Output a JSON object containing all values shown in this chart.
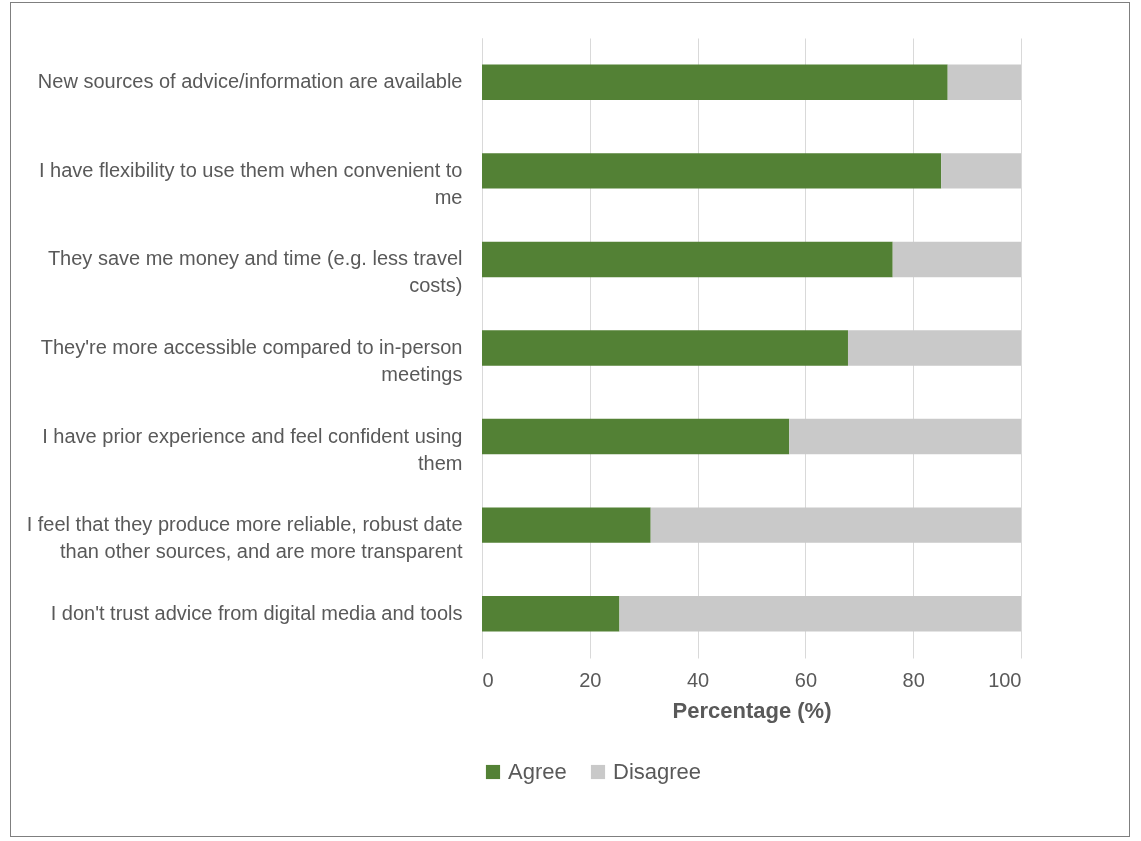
{
  "chart_data": {
    "type": "bar",
    "orientation": "horizontal",
    "stacked": true,
    "categories": [
      "New sources of advice/information are available",
      "I have flexibility to use them when convenient to me",
      "They save me money and time (e.g. less travel costs)",
      "They're more accessible compared to in-person meetings",
      "I have prior experience and feel confident using them",
      "I feel that they produce more reliable, robust date than other sources, and are more transparent",
      "I don't trust advice from digital media and tools"
    ],
    "series": [
      {
        "name": "Agree",
        "color": "#538135",
        "values": [
          86.4,
          85.2,
          76.2,
          67.9,
          57.0,
          31.3,
          25.5
        ]
      },
      {
        "name": "Disagree",
        "color": "#c9c9c9",
        "values": [
          13.6,
          14.8,
          23.8,
          32.1,
          43.0,
          68.7,
          74.5
        ]
      }
    ],
    "xlabel": "Percentage (%)",
    "xlim": [
      0,
      100
    ],
    "xticks": [
      0,
      20,
      40,
      60,
      80,
      100
    ],
    "grid": "x",
    "legend": "bottom"
  }
}
